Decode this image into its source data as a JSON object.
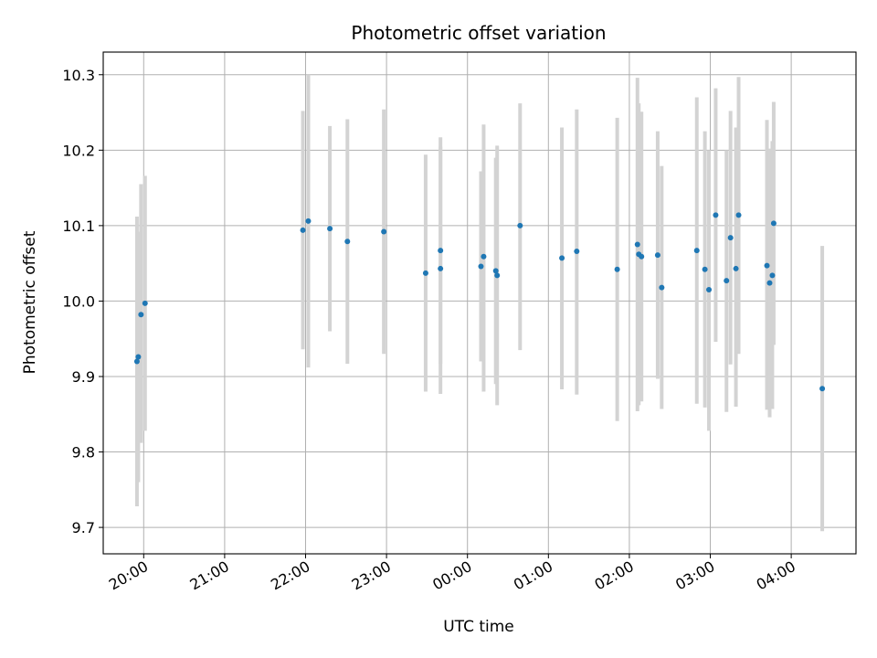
{
  "chart_data": {
    "type": "scatter",
    "title": "Photometric offset variation",
    "xlabel": "UTC time",
    "ylabel": "Photometric offset",
    "x_axis_type": "time",
    "xlim": [
      "19:30",
      "04:48"
    ],
    "ylim": [
      9.665,
      10.33
    ],
    "grid": true,
    "x_ticks": [
      "20:00",
      "21:00",
      "22:00",
      "23:00",
      "00:00",
      "01:00",
      "02:00",
      "03:00",
      "04:00"
    ],
    "y_ticks": [
      "9.7",
      "9.8",
      "9.9",
      "10.0",
      "10.1",
      "10.2",
      "10.3"
    ],
    "y_tick_values": [
      9.7,
      9.8,
      9.9,
      10.0,
      10.1,
      10.2,
      10.3
    ],
    "marker_color": "#1f77b4",
    "errorbar_color": "#d3d3d3",
    "points": [
      {
        "x": "19:55",
        "y": 9.92,
        "yerr_low": 9.728,
        "yerr_high": 10.112
      },
      {
        "x": "19:56",
        "y": 9.926,
        "yerr_low": 9.76,
        "yerr_high": 10.092
      },
      {
        "x": "19:58",
        "y": 9.982,
        "yerr_low": 9.812,
        "yerr_high": 10.155
      },
      {
        "x": "20:01",
        "y": 9.997,
        "yerr_low": 9.828,
        "yerr_high": 10.166
      },
      {
        "x": "21:58",
        "y": 10.094,
        "yerr_low": 9.936,
        "yerr_high": 10.252
      },
      {
        "x": "22:02",
        "y": 10.106,
        "yerr_low": 9.912,
        "yerr_high": 10.3
      },
      {
        "x": "22:18",
        "y": 10.096,
        "yerr_low": 9.96,
        "yerr_high": 10.232
      },
      {
        "x": "22:31",
        "y": 10.079,
        "yerr_low": 9.917,
        "yerr_high": 10.241
      },
      {
        "x": "22:58",
        "y": 10.092,
        "yerr_low": 9.93,
        "yerr_high": 10.254
      },
      {
        "x": "23:29",
        "y": 10.037,
        "yerr_low": 9.88,
        "yerr_high": 10.194
      },
      {
        "x": "23:40",
        "y": 10.067,
        "yerr_low": 9.917,
        "yerr_high": 10.205
      },
      {
        "x": "23:40",
        "y": 10.043,
        "yerr_low": 9.877,
        "yerr_high": 10.217
      },
      {
        "x": "00:10",
        "y": 10.046,
        "yerr_low": 9.92,
        "yerr_high": 10.172
      },
      {
        "x": "00:12",
        "y": 10.059,
        "yerr_low": 9.88,
        "yerr_high": 10.234
      },
      {
        "x": "00:21",
        "y": 10.04,
        "yerr_low": 9.89,
        "yerr_high": 10.19
      },
      {
        "x": "00:22",
        "y": 10.034,
        "yerr_low": 9.862,
        "yerr_high": 10.206
      },
      {
        "x": "00:39",
        "y": 10.1,
        "yerr_low": 9.935,
        "yerr_high": 10.262
      },
      {
        "x": "01:10",
        "y": 10.057,
        "yerr_low": 9.883,
        "yerr_high": 10.23
      },
      {
        "x": "01:21",
        "y": 10.066,
        "yerr_low": 9.876,
        "yerr_high": 10.254
      },
      {
        "x": "01:51",
        "y": 10.042,
        "yerr_low": 9.841,
        "yerr_high": 10.243
      },
      {
        "x": "02:06",
        "y": 10.075,
        "yerr_low": 9.854,
        "yerr_high": 10.296
      },
      {
        "x": "02:07",
        "y": 10.062,
        "yerr_low": 9.862,
        "yerr_high": 10.262
      },
      {
        "x": "02:09",
        "y": 10.059,
        "yerr_low": 9.867,
        "yerr_high": 10.251
      },
      {
        "x": "02:21",
        "y": 10.061,
        "yerr_low": 9.897,
        "yerr_high": 10.225
      },
      {
        "x": "02:24",
        "y": 10.018,
        "yerr_low": 9.857,
        "yerr_high": 10.179
      },
      {
        "x": "02:50",
        "y": 10.067,
        "yerr_low": 9.864,
        "yerr_high": 10.27
      },
      {
        "x": "02:56",
        "y": 10.042,
        "yerr_low": 9.859,
        "yerr_high": 10.225
      },
      {
        "x": "02:59",
        "y": 10.015,
        "yerr_low": 9.828,
        "yerr_high": 10.2
      },
      {
        "x": "03:04",
        "y": 10.114,
        "yerr_low": 9.946,
        "yerr_high": 10.282
      },
      {
        "x": "03:12",
        "y": 10.027,
        "yerr_low": 9.853,
        "yerr_high": 10.2
      },
      {
        "x": "03:15",
        "y": 10.084,
        "yerr_low": 9.916,
        "yerr_high": 10.252
      },
      {
        "x": "03:19",
        "y": 10.043,
        "yerr_low": 9.86,
        "yerr_high": 10.23
      },
      {
        "x": "03:21",
        "y": 10.114,
        "yerr_low": 9.93,
        "yerr_high": 10.297
      },
      {
        "x": "03:42",
        "y": 10.047,
        "yerr_low": 9.856,
        "yerr_high": 10.24
      },
      {
        "x": "03:44",
        "y": 10.024,
        "yerr_low": 9.846,
        "yerr_high": 10.202
      },
      {
        "x": "03:46",
        "y": 10.034,
        "yerr_low": 9.857,
        "yerr_high": 10.212
      },
      {
        "x": "03:47",
        "y": 10.103,
        "yerr_low": 9.942,
        "yerr_high": 10.264
      },
      {
        "x": "04:23",
        "y": 9.884,
        "yerr_low": 9.695,
        "yerr_high": 10.073
      }
    ]
  }
}
